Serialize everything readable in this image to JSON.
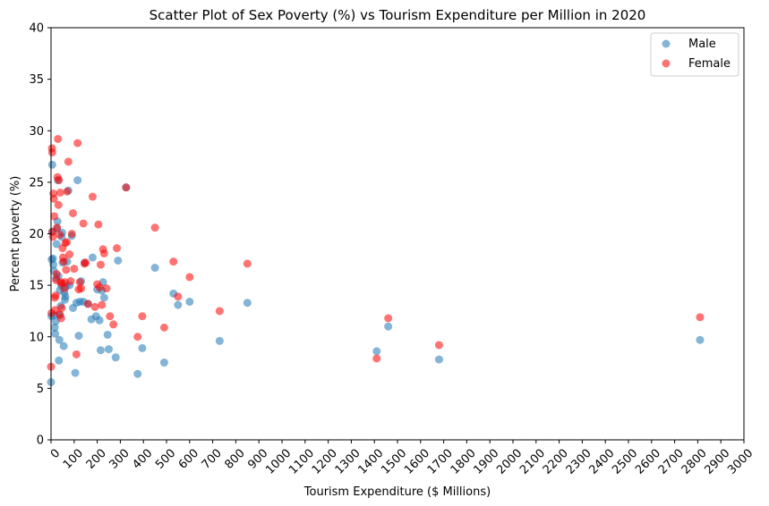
{
  "chart_data": {
    "type": "scatter",
    "title": "Scatter Plot of Sex Poverty (%) vs Tourism Expenditure per Million in 2020",
    "xlabel": "Tourism Expenditure ($ Millions)",
    "ylabel": "Percent poverty (%)",
    "xlim": [
      0,
      3000
    ],
    "ylim": [
      0,
      40
    ],
    "xticks": [
      0,
      100,
      200,
      300,
      400,
      500,
      600,
      700,
      800,
      900,
      1000,
      1100,
      1200,
      1300,
      1400,
      1500,
      1600,
      1700,
      1800,
      1900,
      2000,
      2100,
      2200,
      2300,
      2400,
      2500,
      2600,
      2700,
      2800,
      2900,
      3000
    ],
    "yticks": [
      0,
      5,
      10,
      15,
      20,
      25,
      30,
      35,
      40
    ],
    "grid": false,
    "legend_position": "top-right",
    "series": [
      {
        "name": "Male",
        "color": "#1f77b4",
        "points": [
          [
            0,
            5.6
          ],
          [
            2,
            12.0
          ],
          [
            3,
            17.5
          ],
          [
            5,
            26.7
          ],
          [
            6,
            20.2
          ],
          [
            8,
            17.6
          ],
          [
            10,
            17.0
          ],
          [
            12,
            16.4
          ],
          [
            14,
            12.1
          ],
          [
            16,
            10.9
          ],
          [
            18,
            10.3
          ],
          [
            20,
            11.5
          ],
          [
            22,
            15.7
          ],
          [
            24,
            19.0
          ],
          [
            26,
            20.5
          ],
          [
            28,
            21.2
          ],
          [
            30,
            25.2
          ],
          [
            32,
            15.9
          ],
          [
            34,
            7.7
          ],
          [
            36,
            9.7
          ],
          [
            38,
            14.5
          ],
          [
            40,
            12.1
          ],
          [
            42,
            13.0
          ],
          [
            44,
            15.0
          ],
          [
            46,
            19.7
          ],
          [
            48,
            20.1
          ],
          [
            50,
            17.2
          ],
          [
            55,
            9.1
          ],
          [
            58,
            14.3
          ],
          [
            60,
            13.6
          ],
          [
            62,
            13.9
          ],
          [
            65,
            14.9
          ],
          [
            70,
            17.3
          ],
          [
            75,
            24.2
          ],
          [
            80,
            15.0
          ],
          [
            90,
            19.8
          ],
          [
            95,
            12.8
          ],
          [
            105,
            6.5
          ],
          [
            110,
            13.3
          ],
          [
            115,
            25.2
          ],
          [
            120,
            10.1
          ],
          [
            125,
            13.4
          ],
          [
            130,
            15.4
          ],
          [
            140,
            13.4
          ],
          [
            145,
            17.2
          ],
          [
            160,
            13.2
          ],
          [
            175,
            11.7
          ],
          [
            180,
            17.7
          ],
          [
            195,
            12.0
          ],
          [
            200,
            14.6
          ],
          [
            210,
            11.6
          ],
          [
            215,
            8.7
          ],
          [
            220,
            14.5
          ],
          [
            225,
            15.3
          ],
          [
            230,
            13.8
          ],
          [
            245,
            10.2
          ],
          [
            250,
            8.8
          ],
          [
            280,
            8.0
          ],
          [
            290,
            17.4
          ],
          [
            325,
            24.5
          ],
          [
            375,
            6.4
          ],
          [
            395,
            8.9
          ],
          [
            450,
            16.7
          ],
          [
            490,
            7.5
          ],
          [
            530,
            14.2
          ],
          [
            550,
            13.1
          ],
          [
            600,
            13.4
          ],
          [
            730,
            9.6
          ],
          [
            850,
            13.3
          ],
          [
            1410,
            8.6
          ],
          [
            1460,
            11.0
          ],
          [
            1680,
            7.8
          ],
          [
            2810,
            9.7
          ]
        ]
      },
      {
        "name": "Female",
        "color": "#ff0000",
        "points": [
          [
            0,
            7.1
          ],
          [
            2,
            12.3
          ],
          [
            4,
            28.3
          ],
          [
            5,
            27.9
          ],
          [
            6,
            20.2
          ],
          [
            8,
            19.7
          ],
          [
            10,
            23.9
          ],
          [
            12,
            23.4
          ],
          [
            14,
            21.7
          ],
          [
            16,
            13.8
          ],
          [
            18,
            12.6
          ],
          [
            20,
            14.0
          ],
          [
            22,
            15.5
          ],
          [
            24,
            16.1
          ],
          [
            26,
            20.6
          ],
          [
            28,
            25.5
          ],
          [
            30,
            29.2
          ],
          [
            32,
            22.8
          ],
          [
            34,
            25.2
          ],
          [
            36,
            12.2
          ],
          [
            38,
            19.9
          ],
          [
            40,
            24.0
          ],
          [
            42,
            15.3
          ],
          [
            44,
            11.8
          ],
          [
            46,
            12.8
          ],
          [
            48,
            15.2
          ],
          [
            50,
            18.6
          ],
          [
            52,
            17.7
          ],
          [
            55,
            17.3
          ],
          [
            58,
            14.7
          ],
          [
            60,
            15.3
          ],
          [
            62,
            19.1
          ],
          [
            65,
            16.5
          ],
          [
            68,
            19.2
          ],
          [
            70,
            24.1
          ],
          [
            75,
            27.0
          ],
          [
            80,
            18.0
          ],
          [
            85,
            15.4
          ],
          [
            90,
            20.0
          ],
          [
            95,
            22.0
          ],
          [
            100,
            16.6
          ],
          [
            110,
            8.3
          ],
          [
            115,
            28.8
          ],
          [
            120,
            14.6
          ],
          [
            125,
            15.3
          ],
          [
            130,
            14.7
          ],
          [
            140,
            21.0
          ],
          [
            145,
            17.1
          ],
          [
            150,
            17.2
          ],
          [
            160,
            13.2
          ],
          [
            180,
            23.6
          ],
          [
            190,
            12.9
          ],
          [
            200,
            15.1
          ],
          [
            205,
            20.9
          ],
          [
            210,
            14.8
          ],
          [
            215,
            17.0
          ],
          [
            220,
            13.1
          ],
          [
            225,
            18.5
          ],
          [
            230,
            18.1
          ],
          [
            240,
            14.7
          ],
          [
            255,
            12.0
          ],
          [
            270,
            11.2
          ],
          [
            285,
            18.6
          ],
          [
            325,
            24.5
          ],
          [
            375,
            10.0
          ],
          [
            395,
            12.0
          ],
          [
            450,
            20.6
          ],
          [
            490,
            10.9
          ],
          [
            530,
            17.3
          ],
          [
            550,
            13.9
          ],
          [
            600,
            15.8
          ],
          [
            730,
            12.5
          ],
          [
            850,
            17.1
          ],
          [
            1410,
            7.9
          ],
          [
            1460,
            11.8
          ],
          [
            1680,
            9.2
          ],
          [
            2810,
            11.9
          ]
        ]
      }
    ]
  }
}
